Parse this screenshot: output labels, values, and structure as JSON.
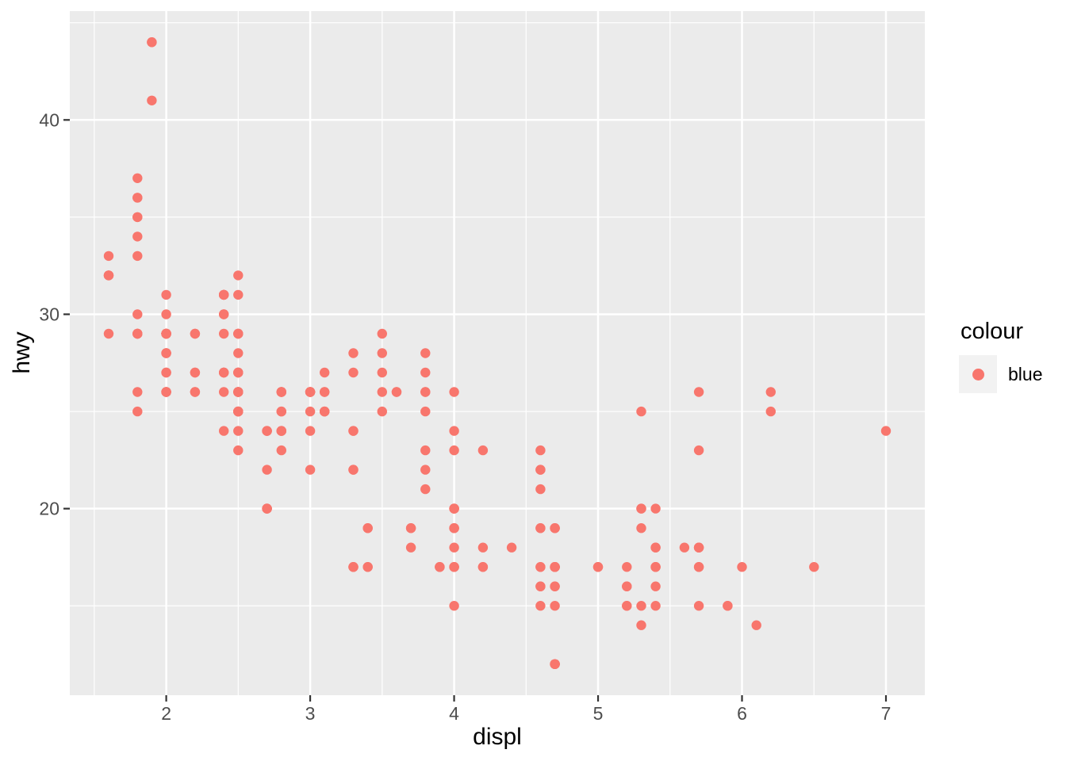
{
  "chart_data": {
    "type": "scatter",
    "title": "",
    "xlabel": "displ",
    "ylabel": "hwy",
    "x_ticks": [
      2,
      3,
      4,
      5,
      6,
      7
    ],
    "y_ticks": [
      20,
      30,
      40
    ],
    "x_minor_ticks": [
      1.5,
      2.5,
      3.5,
      4.5,
      5.5,
      6.5
    ],
    "y_minor_ticks": [
      15,
      25,
      35,
      45
    ],
    "xlim": [
      1.33,
      7.27
    ],
    "ylim": [
      10.4,
      45.6
    ],
    "grid": true,
    "legend": {
      "title": "colour",
      "position": "right",
      "entries": [
        {
          "label": "blue",
          "color": "#F8766D"
        }
      ]
    },
    "theme": {
      "panel_bg": "#EBEBEB",
      "grid_color": "#FFFFFF",
      "tick_mark_color": "#333333",
      "tick_label_color": "#4D4D4D",
      "axis_title_color": "#000000",
      "legend_key_bg": "#F2F2F2",
      "background": "#FFFFFF"
    },
    "series": [
      {
        "name": "blue",
        "color": "#F8766D",
        "x": [
          1.8,
          1.8,
          2,
          2,
          2.8,
          2.8,
          3.1,
          1.8,
          1.8,
          2,
          2,
          2.8,
          2.8,
          3.1,
          3.1,
          2.8,
          3.1,
          4.2,
          5.3,
          5.3,
          5.3,
          5.7,
          6,
          5.7,
          5.7,
          6.2,
          6.2,
          7,
          5.3,
          5.3,
          5.7,
          6.5,
          2.4,
          2.4,
          3.1,
          3.5,
          3.6,
          2.4,
          3,
          3.3,
          3.3,
          3.3,
          3.3,
          3.3,
          3.8,
          3.8,
          3.8,
          4,
          3.7,
          3.7,
          3.9,
          3.9,
          4.7,
          4.7,
          4.7,
          5.2,
          5.2,
          3.9,
          4.7,
          4.7,
          4.7,
          5.2,
          5.7,
          5.9,
          4.7,
          4.7,
          4.7,
          4.7,
          4.7,
          4.7,
          5.2,
          5.2,
          5.7,
          5.9,
          4.6,
          5.4,
          5.4,
          4,
          4,
          4,
          4,
          4.6,
          5,
          4.2,
          4.2,
          4.6,
          4.6,
          4.6,
          5.4,
          5.4,
          3.8,
          3.8,
          4,
          4,
          4.6,
          4.6,
          4.6,
          4.6,
          5.4,
          1.6,
          1.6,
          1.6,
          1.6,
          1.6,
          1.8,
          1.8,
          1.8,
          2,
          2.4,
          2.4,
          2.4,
          2.4,
          2.5,
          2.5,
          3.3,
          2,
          2,
          2,
          2,
          2.7,
          2.7,
          2.7,
          3,
          3.7,
          4,
          4.7,
          4.7,
          4.7,
          5.7,
          6.1,
          4,
          4.2,
          4.4,
          4.6,
          5.4,
          5.4,
          5.4,
          4,
          4,
          4.6,
          5,
          2.4,
          2.4,
          2.5,
          2.5,
          3.5,
          3.5,
          3,
          3,
          3.5,
          3.3,
          3.3,
          4,
          5.6,
          3.1,
          3.8,
          3.8,
          3.8,
          5.3,
          2.5,
          2.5,
          2.5,
          2.5,
          2.5,
          2.5,
          2.2,
          2.2,
          2.5,
          2.5,
          2.5,
          2.5,
          2.5,
          2.5,
          2.7,
          2.7,
          3.4,
          3.4,
          4,
          4.7,
          2.2,
          2.2,
          2.4,
          2.4,
          3,
          3,
          3.5,
          2.2,
          2.2,
          2.4,
          2.4,
          3,
          3,
          3.3,
          1.8,
          1.8,
          1.8,
          1.8,
          1.8,
          4.7,
          5.7,
          2.7,
          2.7,
          2.7,
          3.4,
          3.4,
          4,
          4,
          2,
          2,
          2,
          2,
          2.8,
          1.9,
          2,
          2,
          2,
          2,
          2.5,
          2.5,
          2.8,
          2.8,
          1.9,
          1.9,
          2,
          2,
          2.5,
          2.5,
          1.8,
          1.8,
          2,
          2,
          2.8,
          2.8,
          3.6
        ],
        "y": [
          29,
          29,
          31,
          30,
          26,
          26,
          27,
          26,
          25,
          28,
          27,
          25,
          25,
          25,
          25,
          24,
          25,
          23,
          20,
          15,
          20,
          17,
          17,
          26,
          23,
          26,
          25,
          24,
          19,
          14,
          15,
          17,
          27,
          30,
          26,
          29,
          26,
          24,
          24,
          22,
          22,
          24,
          24,
          17,
          22,
          21,
          23,
          23,
          19,
          18,
          17,
          17,
          19,
          19,
          12,
          17,
          15,
          17,
          17,
          12,
          17,
          16,
          18,
          15,
          16,
          12,
          17,
          17,
          16,
          12,
          15,
          16,
          17,
          15,
          17,
          17,
          18,
          17,
          19,
          17,
          19,
          19,
          17,
          17,
          17,
          16,
          16,
          17,
          15,
          17,
          26,
          25,
          26,
          24,
          21,
          22,
          23,
          22,
          20,
          33,
          32,
          32,
          29,
          32,
          34,
          36,
          36,
          29,
          26,
          27,
          30,
          31,
          26,
          26,
          28,
          26,
          29,
          28,
          27,
          24,
          24,
          24,
          22,
          19,
          20,
          17,
          12,
          19,
          18,
          14,
          15,
          18,
          18,
          15,
          17,
          16,
          18,
          17,
          19,
          19,
          17,
          29,
          27,
          31,
          32,
          27,
          26,
          26,
          25,
          25,
          17,
          17,
          20,
          18,
          26,
          26,
          27,
          28,
          25,
          25,
          24,
          27,
          25,
          26,
          23,
          26,
          26,
          26,
          26,
          25,
          27,
          25,
          27,
          20,
          20,
          19,
          17,
          20,
          17,
          29,
          27,
          31,
          31,
          26,
          26,
          28,
          27,
          29,
          31,
          31,
          26,
          26,
          27,
          30,
          33,
          35,
          37,
          35,
          15,
          18,
          20,
          20,
          22,
          17,
          19,
          18,
          20,
          29,
          26,
          29,
          29,
          24,
          44,
          29,
          26,
          29,
          29,
          29,
          29,
          23,
          24,
          44,
          41,
          29,
          26,
          28,
          29,
          29,
          29,
          28,
          29,
          26,
          26,
          26
        ]
      }
    ]
  }
}
